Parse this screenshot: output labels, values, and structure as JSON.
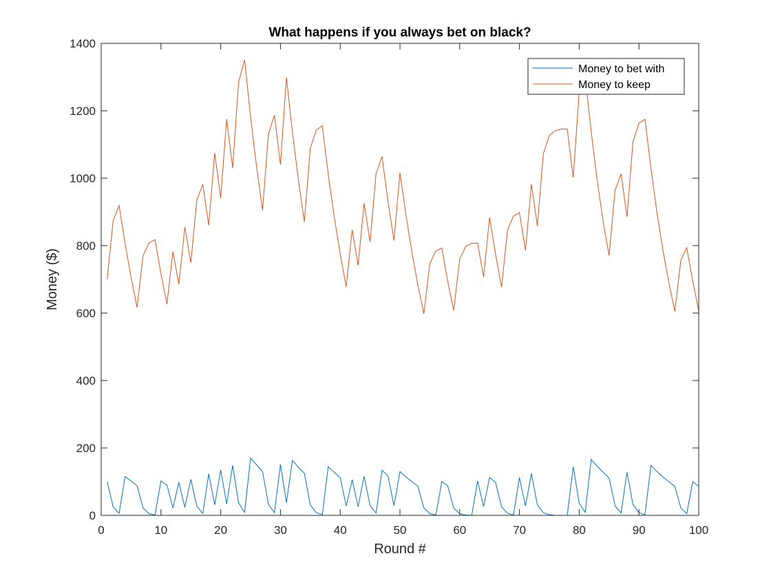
{
  "chart_data": {
    "type": "line",
    "title": "What happens if you always bet on black?",
    "xlabel": "Round #",
    "ylabel": "Money ($)",
    "xlim": [
      0,
      100
    ],
    "ylim": [
      0,
      1400
    ],
    "xticks": [
      0,
      10,
      20,
      30,
      40,
      50,
      60,
      70,
      80,
      90,
      100
    ],
    "yticks": [
      0,
      200,
      400,
      600,
      800,
      1000,
      1200,
      1400
    ],
    "grid": false,
    "legend_position": "top-right",
    "series": [
      {
        "name": "Money to bet with",
        "color": "#0072BD",
        "x": [
          1,
          2,
          3,
          4,
          5,
          6,
          7,
          8,
          9,
          10,
          11,
          12,
          13,
          14,
          15,
          16,
          17,
          18,
          19,
          20,
          21,
          22,
          23,
          24,
          25,
          26,
          27,
          28,
          29,
          30,
          31,
          32,
          33,
          34,
          35,
          36,
          37,
          38,
          39,
          40,
          41,
          42,
          43,
          44,
          45,
          46,
          47,
          48,
          49,
          50,
          51,
          52,
          53,
          54,
          55,
          56,
          57,
          58,
          59,
          60,
          61,
          62,
          63,
          64,
          65,
          66,
          67,
          68,
          69,
          70,
          71,
          72,
          73,
          74,
          75,
          76,
          77,
          78,
          79,
          80,
          81,
          82,
          83,
          84,
          85,
          86,
          87,
          88,
          89,
          90,
          91,
          92,
          93,
          94,
          95,
          96,
          97,
          98,
          99,
          100
        ],
        "values": [
          100,
          25,
          6,
          115,
          102,
          88,
          22,
          5,
          1,
          102,
          90,
          22,
          98,
          24,
          107,
          27,
          6,
          123,
          31,
          135,
          34,
          148,
          37,
          9,
          170,
          150,
          130,
          32,
          8,
          151,
          38,
          163,
          143,
          125,
          31,
          8,
          2,
          145,
          128,
          112,
          28,
          106,
          26,
          116,
          29,
          7,
          134,
          117,
          29,
          130,
          114,
          100,
          87,
          22,
          5,
          1,
          100,
          88,
          22,
          5,
          1,
          0,
          102,
          26,
          112,
          98,
          25,
          6,
          1,
          112,
          28,
          124,
          31,
          8,
          2,
          0,
          0,
          0,
          144,
          36,
          9,
          166,
          146,
          128,
          111,
          28,
          7,
          128,
          32,
          8,
          2,
          148,
          130,
          114,
          100,
          86,
          22,
          5,
          100,
          86
        ]
      },
      {
        "name": "Money to keep",
        "color": "#D95319",
        "x": [
          1,
          2,
          3,
          4,
          5,
          6,
          7,
          8,
          9,
          10,
          11,
          12,
          13,
          14,
          15,
          16,
          17,
          18,
          19,
          20,
          21,
          22,
          23,
          24,
          25,
          26,
          27,
          28,
          29,
          30,
          31,
          32,
          33,
          34,
          35,
          36,
          37,
          38,
          39,
          40,
          41,
          42,
          43,
          44,
          45,
          46,
          47,
          48,
          49,
          50,
          51,
          52,
          53,
          54,
          55,
          56,
          57,
          58,
          59,
          60,
          61,
          62,
          63,
          64,
          65,
          66,
          67,
          68,
          69,
          70,
          71,
          72,
          73,
          74,
          75,
          76,
          77,
          78,
          79,
          80,
          81,
          82,
          83,
          84,
          85,
          86,
          87,
          88,
          89,
          90,
          91,
          92,
          93,
          94,
          95,
          96,
          97,
          98,
          99,
          100
        ],
        "values": [
          700,
          875,
          919,
          806,
          706,
          617,
          770,
          808,
          818,
          717,
          627,
          783,
          685,
          855,
          749,
          935,
          982,
          860,
          1075,
          941,
          1176,
          1030,
          1285,
          1351,
          1182,
          1034,
          905,
          1131,
          1187,
          1040,
          1299,
          1137,
          996,
          871,
          1089,
          1143,
          1156,
          1012,
          886,
          775,
          678,
          847,
          741,
          926,
          811,
          1014,
          1064,
          931,
          815,
          1017,
          891,
          780,
          683,
          598,
          747,
          784,
          793,
          694,
          608,
          760,
          798,
          807,
          808,
          707,
          884,
          774,
          677,
          846,
          888,
          898,
          786,
          982,
          859,
          1073,
          1127,
          1141,
          1146,
          1146,
          1002,
          1256,
          1300,
          1138,
          996,
          872,
          771,
          964,
          1013,
          886,
          1108,
          1163,
          1175,
          1029,
          900,
          788,
          690,
          605,
          756,
          794,
          695,
          607
        ]
      }
    ]
  }
}
